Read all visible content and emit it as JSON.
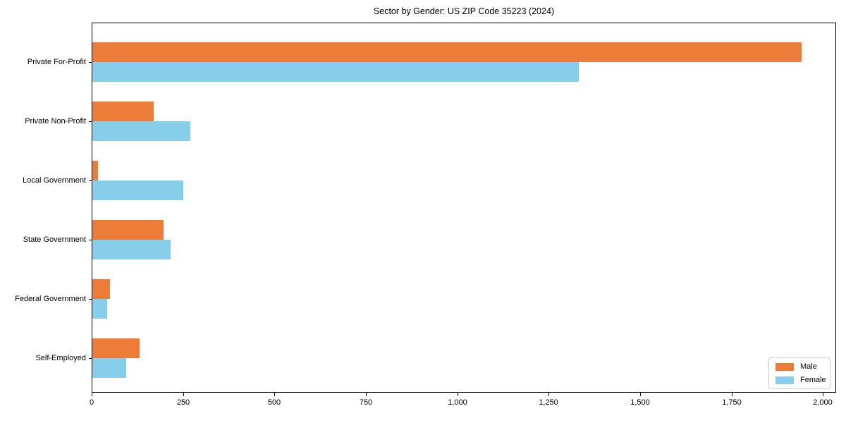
{
  "chart_data": {
    "type": "bar",
    "orientation": "horizontal",
    "title": "Sector by Gender: US ZIP Code 35223 (2024)",
    "xlabel": "",
    "ylabel": "",
    "categories": [
      "Private For-Profit",
      "Private Non-Profit",
      "Local Government",
      "State Government",
      "Federal Government",
      "Self-Employed"
    ],
    "series": [
      {
        "name": "Male",
        "color": "#ED7C39",
        "values": [
          1940,
          167,
          16,
          195,
          48,
          130
        ]
      },
      {
        "name": "Female",
        "color": "#87CEEB",
        "values": [
          1330,
          268,
          248,
          214,
          41,
          93
        ]
      }
    ],
    "xlim": [
      0,
      2036
    ],
    "xticks": [
      0,
      250,
      500,
      750,
      1000,
      1250,
      1500,
      1750,
      2000
    ],
    "xtick_labels": [
      "0",
      "250",
      "500",
      "750",
      "1,000",
      "1,250",
      "1,500",
      "1,750",
      "2,000"
    ],
    "grid": false,
    "legend": {
      "position": "lower right",
      "entries": [
        "Male",
        "Female"
      ]
    },
    "colors": {
      "spine": "#000000",
      "text": "#000000",
      "legend_border": "#cccccc",
      "background": "#ffffff"
    }
  }
}
